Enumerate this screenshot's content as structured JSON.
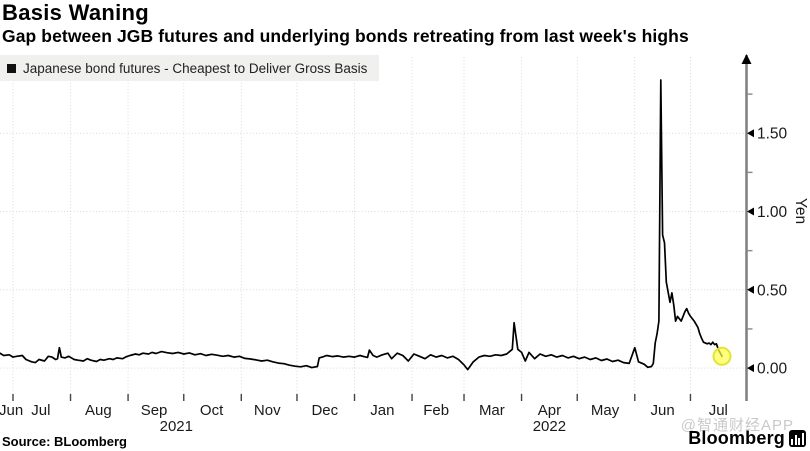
{
  "header": {
    "title": "Basis Waning",
    "subtitle": "Gap between JGB futures and underlying bonds retreating from last week's highs"
  },
  "footer": {
    "source": "Source: BLoomberg",
    "watermark": "@智通财经APP",
    "brand": "Bloomberg"
  },
  "colors": {
    "line": "#000000",
    "grid": "#d9d9d9",
    "axis": "#7f7f7f",
    "tick_text": "#1a1a1a",
    "legend_bg": "#f0f0ee",
    "marker_fill": "#ffff4d",
    "marker_stroke": "#e3e332",
    "watermark": "#c9c9c9"
  },
  "chart_data": {
    "type": "line",
    "title": "Basis Waning",
    "subtitle": "Gap between JGB futures and underlying bonds retreating from last week's highs",
    "legend": "Japanese bond futures - Cheapest to Deliver Gross Basis",
    "legend_position": "top-left",
    "axis_side": "right",
    "grid": "dotted",
    "ylabel": "Yen",
    "ylim": [
      -0.204,
      1.987
    ],
    "x_domain": [
      "2021-06-24",
      "2022-08-01"
    ],
    "y_major_ticks": [
      {
        "value": 0.0,
        "label": "0.00"
      },
      {
        "value": 0.5,
        "label": "0.50"
      },
      {
        "value": 1.0,
        "label": "1.00"
      },
      {
        "value": 1.5,
        "label": "1.50"
      }
    ],
    "y_minor_ticks": [
      0.25,
      0.75,
      1.25,
      1.75
    ],
    "x_gridline_dates": [
      "2021-07-01",
      "2021-08-01",
      "2021-09-01",
      "2021-10-01",
      "2021-11-01",
      "2021-12-01",
      "2022-01-01",
      "2022-02-01",
      "2022-03-01",
      "2022-04-01",
      "2022-05-01",
      "2022-06-01",
      "2022-07-01"
    ],
    "x_month_labels": [
      {
        "label": "Jun",
        "date": "2021-06-30"
      },
      {
        "label": "Jul",
        "date": "2021-07-16"
      },
      {
        "label": "Aug",
        "date": "2021-08-16"
      },
      {
        "label": "Sep",
        "date": "2021-09-15"
      },
      {
        "label": "Oct",
        "date": "2021-10-16"
      },
      {
        "label": "Nov",
        "date": "2021-11-15"
      },
      {
        "label": "Dec",
        "date": "2021-12-16"
      },
      {
        "label": "Jan",
        "date": "2022-01-16"
      },
      {
        "label": "Feb",
        "date": "2022-02-14"
      },
      {
        "label": "Mar",
        "date": "2022-03-16"
      },
      {
        "label": "Apr",
        "date": "2022-04-16"
      },
      {
        "label": "May",
        "date": "2022-05-16"
      },
      {
        "label": "Jun",
        "date": "2022-06-16"
      },
      {
        "label": "Jul",
        "date": "2022-07-16"
      }
    ],
    "x_year_labels": [
      {
        "label": "2021",
        "date": "2021-09-27"
      },
      {
        "label": "2022",
        "date": "2022-04-16"
      }
    ],
    "end_marker": {
      "radius": 8.5,
      "fill": "#ffff4d",
      "stroke": "#e3e332"
    },
    "series": [
      {
        "name": "Japanese bond futures - Cheapest to Deliver Gross Basis",
        "color": "#000000",
        "points": [
          [
            "2021-06-24",
            0.095
          ],
          [
            "2021-06-26",
            0.08
          ],
          [
            "2021-06-29",
            0.085
          ],
          [
            "2021-07-01",
            0.07
          ],
          [
            "2021-07-03",
            0.075
          ],
          [
            "2021-07-06",
            0.08
          ],
          [
            "2021-07-08",
            0.055
          ],
          [
            "2021-07-11",
            0.04
          ],
          [
            "2021-07-13",
            0.035
          ],
          [
            "2021-07-15",
            0.055
          ],
          [
            "2021-07-18",
            0.045
          ],
          [
            "2021-07-20",
            0.075
          ],
          [
            "2021-07-22",
            0.07
          ],
          [
            "2021-07-24",
            0.055
          ],
          [
            "2021-07-25",
            0.06
          ],
          [
            "2021-07-26",
            0.13
          ],
          [
            "2021-07-27",
            0.07
          ],
          [
            "2021-07-29",
            0.065
          ],
          [
            "2021-07-31",
            0.075
          ],
          [
            "2021-08-03",
            0.055
          ],
          [
            "2021-08-05",
            0.05
          ],
          [
            "2021-08-08",
            0.045
          ],
          [
            "2021-08-10",
            0.06
          ],
          [
            "2021-08-12",
            0.05
          ],
          [
            "2021-08-15",
            0.042
          ],
          [
            "2021-08-17",
            0.055
          ],
          [
            "2021-08-19",
            0.05
          ],
          [
            "2021-08-22",
            0.06
          ],
          [
            "2021-08-24",
            0.055
          ],
          [
            "2021-08-26",
            0.065
          ],
          [
            "2021-08-29",
            0.06
          ],
          [
            "2021-08-31",
            0.072
          ],
          [
            "2021-09-02",
            0.08
          ],
          [
            "2021-09-05",
            0.09
          ],
          [
            "2021-09-07",
            0.085
          ],
          [
            "2021-09-09",
            0.095
          ],
          [
            "2021-09-12",
            0.09
          ],
          [
            "2021-09-14",
            0.1
          ],
          [
            "2021-09-16",
            0.093
          ],
          [
            "2021-09-19",
            0.105
          ],
          [
            "2021-09-22",
            0.098
          ],
          [
            "2021-09-25",
            0.093
          ],
          [
            "2021-09-28",
            0.1
          ],
          [
            "2021-10-01",
            0.09
          ],
          [
            "2021-10-04",
            0.097
          ],
          [
            "2021-10-07",
            0.085
          ],
          [
            "2021-10-10",
            0.092
          ],
          [
            "2021-10-13",
            0.08
          ],
          [
            "2021-10-16",
            0.088
          ],
          [
            "2021-10-19",
            0.082
          ],
          [
            "2021-10-22",
            0.075
          ],
          [
            "2021-10-25",
            0.08
          ],
          [
            "2021-10-28",
            0.07
          ],
          [
            "2021-10-31",
            0.075
          ],
          [
            "2021-11-03",
            0.062
          ],
          [
            "2021-11-06",
            0.058
          ],
          [
            "2021-11-09",
            0.052
          ],
          [
            "2021-11-12",
            0.045
          ],
          [
            "2021-11-15",
            0.05
          ],
          [
            "2021-11-18",
            0.04
          ],
          [
            "2021-11-21",
            0.032
          ],
          [
            "2021-11-24",
            0.028
          ],
          [
            "2021-11-27",
            0.018
          ],
          [
            "2021-11-30",
            0.012
          ],
          [
            "2021-12-03",
            0.008
          ],
          [
            "2021-12-06",
            0.015
          ],
          [
            "2021-12-09",
            0.003
          ],
          [
            "2021-12-12",
            0.01
          ],
          [
            "2021-12-13",
            0.065
          ],
          [
            "2021-12-15",
            0.072
          ],
          [
            "2021-12-17",
            0.08
          ],
          [
            "2021-12-20",
            0.073
          ],
          [
            "2021-12-23",
            0.078
          ],
          [
            "2021-12-26",
            0.07
          ],
          [
            "2021-12-29",
            0.075
          ],
          [
            "2022-01-01",
            0.07
          ],
          [
            "2022-01-04",
            0.08
          ],
          [
            "2022-01-06",
            0.073
          ],
          [
            "2022-01-08",
            0.068
          ],
          [
            "2022-01-09",
            0.115
          ],
          [
            "2022-01-11",
            0.08
          ],
          [
            "2022-01-13",
            0.07
          ],
          [
            "2022-01-16",
            0.085
          ],
          [
            "2022-01-19",
            0.095
          ],
          [
            "2022-01-21",
            0.06
          ],
          [
            "2022-01-24",
            0.095
          ],
          [
            "2022-01-27",
            0.08
          ],
          [
            "2022-01-30",
            0.045
          ],
          [
            "2022-02-02",
            0.09
          ],
          [
            "2022-02-05",
            0.075
          ],
          [
            "2022-02-08",
            0.06
          ],
          [
            "2022-02-11",
            0.085
          ],
          [
            "2022-02-14",
            0.07
          ],
          [
            "2022-02-17",
            0.08
          ],
          [
            "2022-02-20",
            0.065
          ],
          [
            "2022-02-23",
            0.075
          ],
          [
            "2022-02-26",
            0.055
          ],
          [
            "2022-03-01",
            0.02
          ],
          [
            "2022-03-03",
            -0.01
          ],
          [
            "2022-03-06",
            0.04
          ],
          [
            "2022-03-09",
            0.07
          ],
          [
            "2022-03-12",
            0.08
          ],
          [
            "2022-03-15",
            0.075
          ],
          [
            "2022-03-18",
            0.085
          ],
          [
            "2022-03-21",
            0.08
          ],
          [
            "2022-03-24",
            0.09
          ],
          [
            "2022-03-27",
            0.12
          ],
          [
            "2022-03-28",
            0.29
          ],
          [
            "2022-03-30",
            0.12
          ],
          [
            "2022-04-01",
            0.1
          ],
          [
            "2022-04-03",
            0.045
          ],
          [
            "2022-04-05",
            0.1
          ],
          [
            "2022-04-08",
            0.06
          ],
          [
            "2022-04-11",
            0.09
          ],
          [
            "2022-04-14",
            0.075
          ],
          [
            "2022-04-17",
            0.085
          ],
          [
            "2022-04-20",
            0.07
          ],
          [
            "2022-04-23",
            0.08
          ],
          [
            "2022-04-26",
            0.065
          ],
          [
            "2022-04-29",
            0.075
          ],
          [
            "2022-05-02",
            0.06
          ],
          [
            "2022-05-05",
            0.07
          ],
          [
            "2022-05-08",
            0.055
          ],
          [
            "2022-05-11",
            0.065
          ],
          [
            "2022-05-14",
            0.048
          ],
          [
            "2022-05-17",
            0.058
          ],
          [
            "2022-05-20",
            0.042
          ],
          [
            "2022-05-23",
            0.05
          ],
          [
            "2022-05-26",
            0.035
          ],
          [
            "2022-05-29",
            0.03
          ],
          [
            "2022-06-01",
            0.13
          ],
          [
            "2022-06-03",
            0.04
          ],
          [
            "2022-06-06",
            0.025
          ],
          [
            "2022-06-08",
            0.005
          ],
          [
            "2022-06-10",
            0.01
          ],
          [
            "2022-06-11",
            0.03
          ],
          [
            "2022-06-12",
            0.16
          ],
          [
            "2022-06-13",
            0.22
          ],
          [
            "2022-06-14",
            0.3
          ],
          [
            "2022-06-15",
            1.84
          ],
          [
            "2022-06-16",
            0.85
          ],
          [
            "2022-06-17",
            0.8
          ],
          [
            "2022-06-18",
            0.55
          ],
          [
            "2022-06-20",
            0.42
          ],
          [
            "2022-06-21",
            0.48
          ],
          [
            "2022-06-22",
            0.4
          ],
          [
            "2022-06-23",
            0.3
          ],
          [
            "2022-06-24",
            0.33
          ],
          [
            "2022-06-26",
            0.3
          ],
          [
            "2022-06-28",
            0.36
          ],
          [
            "2022-06-29",
            0.38
          ],
          [
            "2022-06-30",
            0.35
          ],
          [
            "2022-07-01",
            0.33
          ],
          [
            "2022-07-03",
            0.3
          ],
          [
            "2022-07-05",
            0.26
          ],
          [
            "2022-07-06",
            0.22
          ],
          [
            "2022-07-07",
            0.19
          ],
          [
            "2022-07-08",
            0.165
          ],
          [
            "2022-07-10",
            0.155
          ],
          [
            "2022-07-11",
            0.16
          ],
          [
            "2022-07-12",
            0.15
          ],
          [
            "2022-07-13",
            0.165
          ],
          [
            "2022-07-14",
            0.15
          ],
          [
            "2022-07-15",
            0.155
          ],
          [
            "2022-07-16",
            0.12
          ],
          [
            "2022-07-18",
            0.075
          ]
        ]
      }
    ]
  }
}
